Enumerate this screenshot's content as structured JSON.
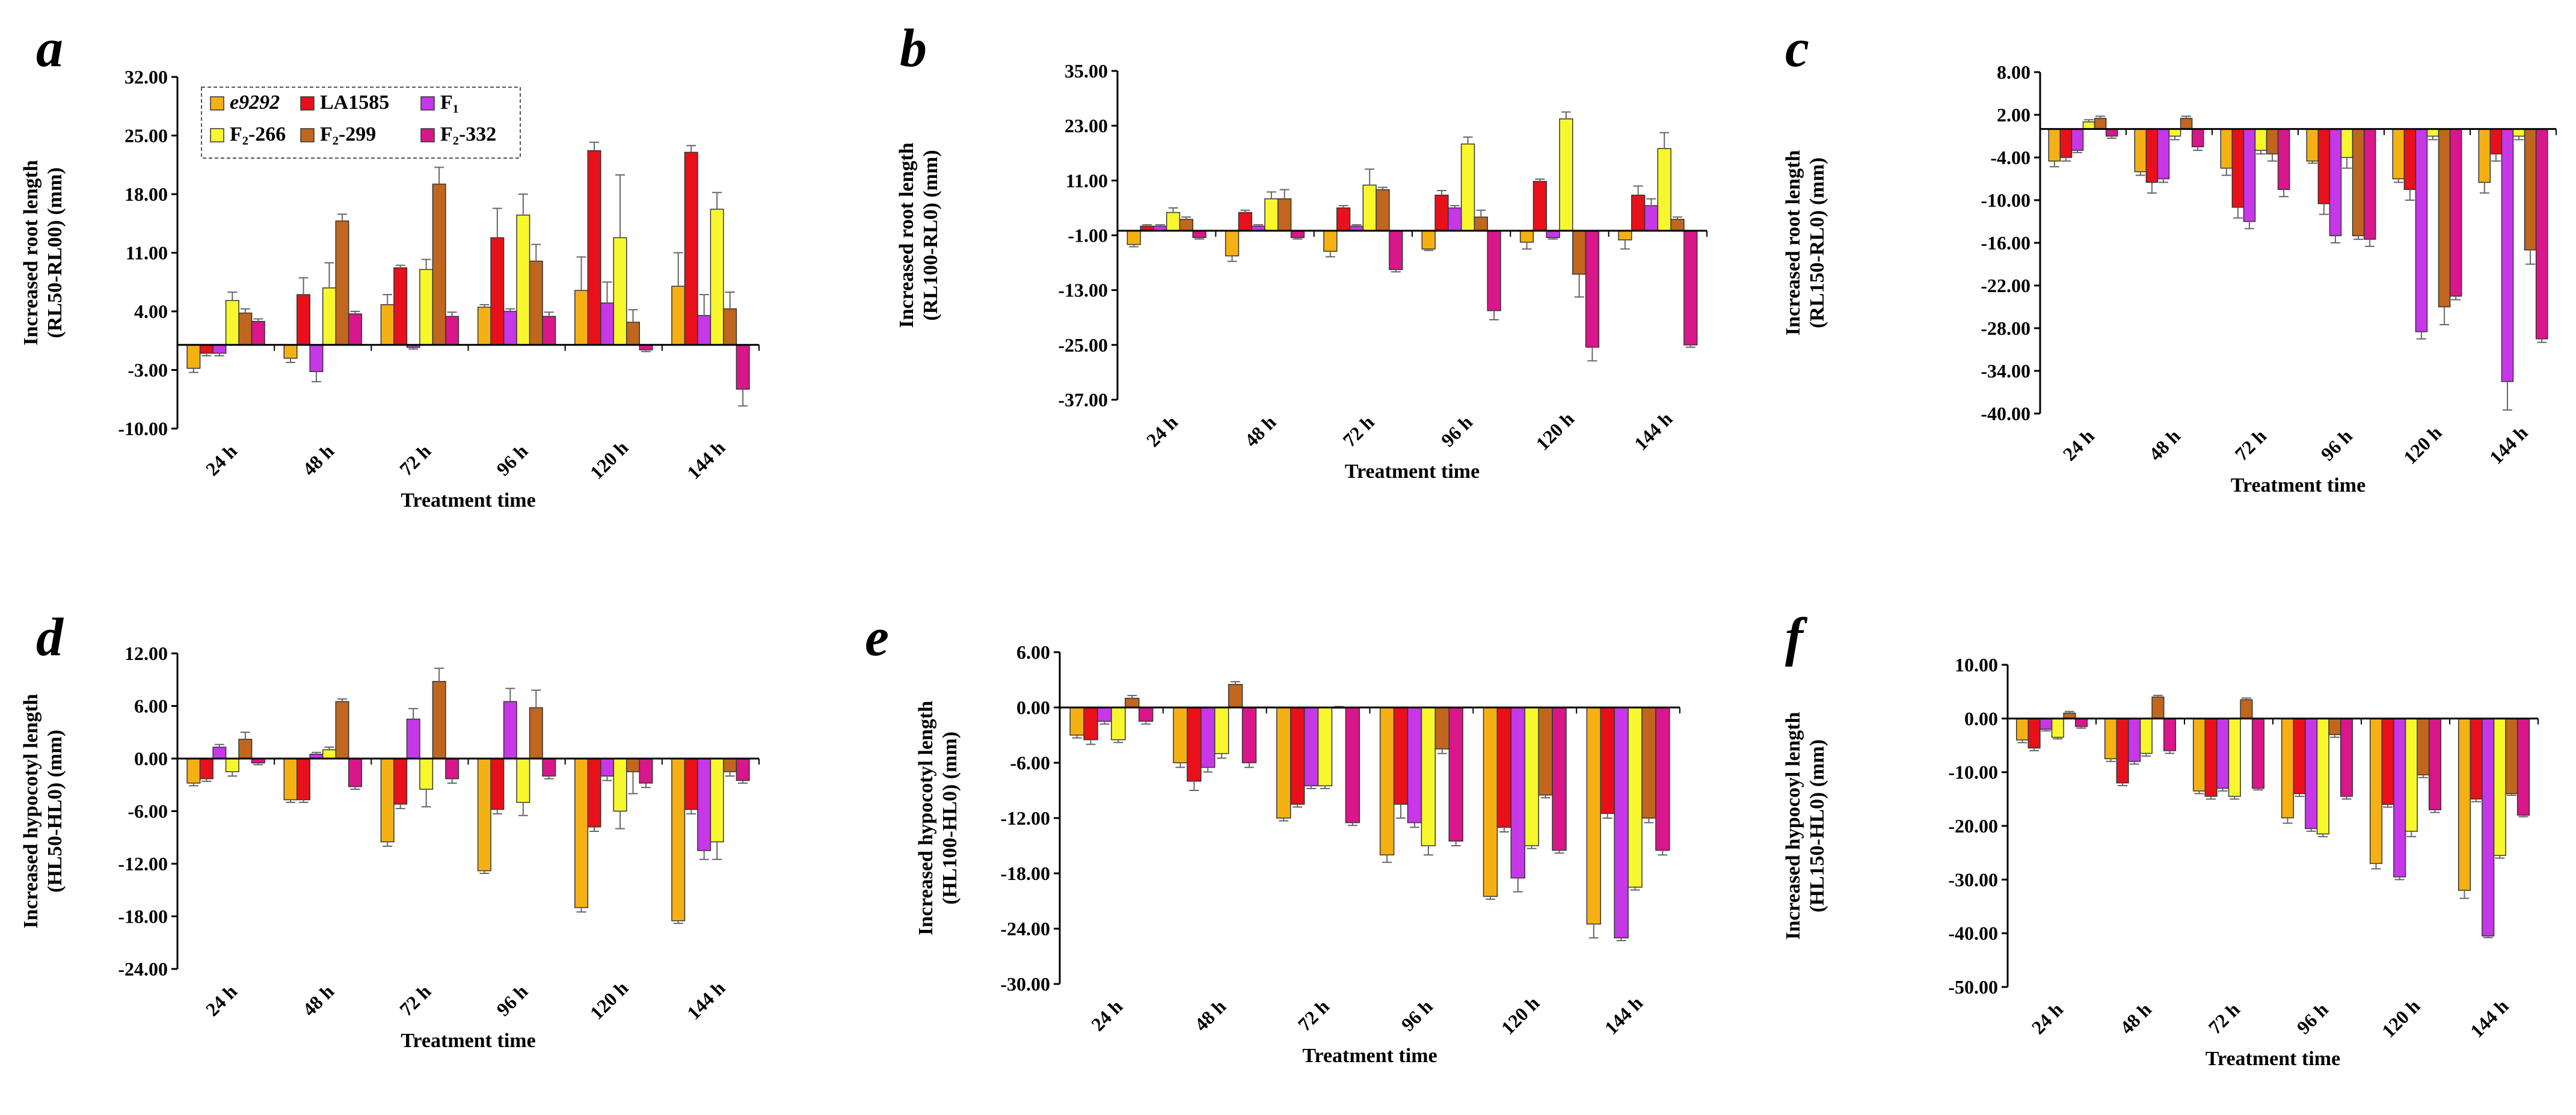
{
  "legend": [
    {
      "label": "e9292",
      "italic": true,
      "color": "#F5B014"
    },
    {
      "label": "LA1585",
      "italic": false,
      "color": "#E8101A"
    },
    {
      "label": "F₁",
      "italic": false,
      "color": "#C637E8"
    },
    {
      "label": "F₂-266",
      "italic": false,
      "color": "#F8F72E"
    },
    {
      "label": "F₂-299",
      "italic": false,
      "color": "#C0661E"
    },
    {
      "label": "F₂-332",
      "italic": false,
      "color": "#D9168A"
    }
  ],
  "chart_data": [
    {
      "panel": "a",
      "type": "bar",
      "title": "",
      "xlabel": "Treatment time",
      "ylabel_lines": [
        "Increased root length",
        "(RL50-RL00) (mm)"
      ],
      "ylim": [
        -10,
        32
      ],
      "yticks": [
        "32.00",
        "25.00",
        "18.00",
        "11.00",
        "4.00",
        "-3.00",
        "-10.00"
      ],
      "ytick_values": [
        32,
        25,
        18,
        11,
        4,
        -3,
        -10
      ],
      "categories": [
        "24 h",
        "48 h",
        "72 h",
        "96 h",
        "120 h",
        "144 h"
      ],
      "series": [
        {
          "name": "e9292",
          "values": [
            -2.8,
            -1.6,
            4.8,
            4.5,
            6.5,
            7.0
          ],
          "errors": [
            0.5,
            0.5,
            1.2,
            0.3,
            4.0,
            4.0
          ]
        },
        {
          "name": "LA1585",
          "values": [
            -1.0,
            6.0,
            9.2,
            12.8,
            23.2,
            23.0
          ],
          "errors": [
            0.3,
            2.0,
            0.3,
            3.5,
            1.0,
            0.8
          ]
        },
        {
          "name": "F₁",
          "values": [
            -1.0,
            -3.2,
            -0.3,
            4.0,
            5.0,
            3.5
          ],
          "errors": [
            0.3,
            1.2,
            0.2,
            0.3,
            2.5,
            2.5
          ]
        },
        {
          "name": "F₂-266",
          "values": [
            5.3,
            6.8,
            9.0,
            15.5,
            12.8,
            16.2
          ],
          "errors": [
            1.0,
            3.0,
            1.2,
            2.5,
            7.5,
            2.0
          ]
        },
        {
          "name": "F₂-299",
          "values": [
            3.8,
            14.8,
            19.2,
            10.0,
            2.7,
            4.3
          ],
          "errors": [
            0.5,
            0.8,
            2.0,
            2.0,
            1.5,
            2.0
          ]
        },
        {
          "name": "F₂-332",
          "values": [
            2.8,
            3.7,
            3.4,
            3.4,
            -0.6,
            -5.3
          ],
          "errors": [
            0.3,
            0.3,
            0.5,
            0.5,
            0.2,
            2.0
          ]
        }
      ]
    },
    {
      "panel": "b",
      "type": "bar",
      "title": "",
      "xlabel": "Treatment time",
      "ylabel_lines": [
        "Increased root length",
        "(RL100-RL0) (mm)"
      ],
      "ylim": [
        -37,
        35
      ],
      "yticks": [
        "35.00",
        "23.00",
        "11.00",
        "-1.00",
        "-13.00",
        "-25.00",
        "-37.00"
      ],
      "ytick_values": [
        35,
        23,
        11,
        -1,
        -13,
        -25,
        -37
      ],
      "categories": [
        "24 h",
        "48 h",
        "72 h",
        "96 h",
        "120 h",
        "144 h"
      ],
      "series": [
        {
          "name": "e9292",
          "values": [
            -3.0,
            -5.5,
            -4.5,
            -4.0,
            -2.5,
            -2.0
          ],
          "errors": [
            0.5,
            1.2,
            1.2,
            0.3,
            1.5,
            2.0
          ]
        },
        {
          "name": "LA1585",
          "values": [
            1.0,
            4.0,
            5.0,
            7.8,
            10.8,
            7.8
          ],
          "errors": [
            0.3,
            0.5,
            0.5,
            1.0,
            0.5,
            2.0
          ]
        },
        {
          "name": "F₁",
          "values": [
            1.0,
            1.0,
            1.0,
            5.0,
            -1.5,
            5.5
          ],
          "errors": [
            0.3,
            0.3,
            0.3,
            0.5,
            0.3,
            1.5
          ]
        },
        {
          "name": "F₂-266",
          "values": [
            4.0,
            7.0,
            10.0,
            19.0,
            24.5,
            18.0
          ],
          "errors": [
            1.0,
            1.5,
            3.5,
            1.5,
            1.5,
            3.5
          ]
        },
        {
          "name": "F₂-299",
          "values": [
            2.5,
            7.0,
            9.0,
            3.0,
            -9.5,
            2.5
          ],
          "errors": [
            0.5,
            2.0,
            0.5,
            1.5,
            5.0,
            0.5
          ]
        },
        {
          "name": "F₂-332",
          "values": [
            -1.5,
            -1.5,
            -8.5,
            -17.5,
            -25.5,
            -25.0
          ],
          "errors": [
            0.3,
            0.3,
            0.5,
            2.0,
            3.0,
            0.5
          ]
        }
      ]
    },
    {
      "panel": "c",
      "type": "bar",
      "title": "",
      "xlabel": "Treatment time",
      "ylabel_lines": [
        "Increased root length",
        "(RL150-RL0) (mm)"
      ],
      "ylim": [
        -40,
        8
      ],
      "yticks": [
        "8.00",
        "2.00",
        "-4.00",
        "-10.00",
        "-16.00",
        "-22.00",
        "-28.00",
        "-34.00",
        "-40.00"
      ],
      "ytick_values": [
        8,
        2,
        -4,
        -10,
        -16,
        -22,
        -28,
        -34,
        -40
      ],
      "categories": [
        "24 h",
        "48 h",
        "72 h",
        "96 h",
        "120 h",
        "144 h"
      ],
      "series": [
        {
          "name": "e9292",
          "values": [
            -4.5,
            -6.0,
            -5.5,
            -4.5,
            -7.0,
            -7.5
          ],
          "errors": [
            0.8,
            0.5,
            1.0,
            0.3,
            0.5,
            1.5
          ]
        },
        {
          "name": "LA1585",
          "values": [
            -4.0,
            -7.5,
            -11.0,
            -10.5,
            -8.5,
            -3.5
          ],
          "errors": [
            0.5,
            1.5,
            1.5,
            1.5,
            1.5,
            1.0
          ]
        },
        {
          "name": "F₁",
          "values": [
            -3.0,
            -7.0,
            -13.0,
            -15.0,
            -28.5,
            -35.5
          ],
          "errors": [
            0.3,
            0.5,
            1.0,
            1.0,
            1.0,
            4.0
          ]
        },
        {
          "name": "F₂-266",
          "values": [
            1.0,
            -1.0,
            -3.0,
            -4.0,
            -1.0,
            -1.0
          ],
          "errors": [
            0.3,
            0.5,
            0.5,
            1.5,
            0.5,
            0.5
          ]
        },
        {
          "name": "F₂-299",
          "values": [
            1.5,
            1.5,
            -3.5,
            -15.0,
            -25.0,
            -17.0
          ],
          "errors": [
            0.3,
            0.3,
            1.0,
            0.5,
            2.5,
            2.0
          ]
        },
        {
          "name": "F₂-332",
          "values": [
            -1.0,
            -2.5,
            -8.5,
            -15.5,
            -23.5,
            -29.5
          ],
          "errors": [
            0.3,
            0.5,
            1.0,
            1.0,
            0.5,
            0.5
          ]
        }
      ]
    },
    {
      "panel": "d",
      "type": "bar",
      "title": "",
      "xlabel": "Treatment time",
      "ylabel_lines": [
        "Increased hypocotyl length",
        "(HL50-HL0) (mm)"
      ],
      "ylim": [
        -24,
        12
      ],
      "yticks": [
        "12.00",
        "6.00",
        "0.00",
        "-6.00",
        "-12.00",
        "-18.00",
        "-24.00"
      ],
      "ytick_values": [
        12,
        6,
        0,
        -6,
        -12,
        -18,
        -24
      ],
      "categories": [
        "24 h",
        "48 h",
        "72 h",
        "96 h",
        "120 h",
        "144 h"
      ],
      "series": [
        {
          "name": "e9292",
          "values": [
            -2.8,
            -4.7,
            -9.5,
            -12.8,
            -17.0,
            -18.5
          ],
          "errors": [
            0.3,
            0.3,
            0.5,
            0.3,
            0.5,
            0.3
          ]
        },
        {
          "name": "LA1585",
          "values": [
            -2.3,
            -4.7,
            -5.2,
            -5.8,
            -7.8,
            -5.8
          ],
          "errors": [
            0.3,
            0.3,
            0.5,
            0.5,
            0.5,
            0.5
          ]
        },
        {
          "name": "F₁",
          "values": [
            1.3,
            0.5,
            4.5,
            6.5,
            -2.0,
            -10.5
          ],
          "errors": [
            0.3,
            0.2,
            1.2,
            1.5,
            0.5,
            1.0
          ]
        },
        {
          "name": "F₂-266",
          "values": [
            -1.5,
            1.0,
            -3.5,
            -5.0,
            -6.0,
            -9.5
          ],
          "errors": [
            0.5,
            0.3,
            2.0,
            1.5,
            2.0,
            2.0
          ]
        },
        {
          "name": "F₂-299",
          "values": [
            2.2,
            6.5,
            8.8,
            5.8,
            -1.5,
            -1.5
          ],
          "errors": [
            0.8,
            0.3,
            1.5,
            2.0,
            2.5,
            0.5
          ]
        },
        {
          "name": "F₂-332",
          "values": [
            -0.5,
            -3.2,
            -2.3,
            -2.0,
            -2.8,
            -2.5
          ],
          "errors": [
            0.2,
            0.3,
            0.5,
            0.3,
            0.5,
            0.3
          ]
        }
      ]
    },
    {
      "panel": "e",
      "type": "bar",
      "title": "",
      "xlabel": "Treatment time",
      "ylabel_lines": [
        "Increased hypocotyl length",
        "(HL100-HL0) (mm)"
      ],
      "ylim": [
        -30,
        6
      ],
      "yticks": [
        "6.00",
        "0.00",
        "-6.00",
        "-12.00",
        "-18.00",
        "-24.00",
        "-30.00"
      ],
      "ytick_values": [
        6,
        0,
        -6,
        -12,
        -18,
        -24,
        -30
      ],
      "categories": [
        "24 h",
        "48 h",
        "72 h",
        "96 h",
        "120 h",
        "144 h"
      ],
      "series": [
        {
          "name": "e9292",
          "values": [
            -3.0,
            -6.0,
            -12.0,
            -16.0,
            -20.5,
            -23.5
          ],
          "errors": [
            0.3,
            0.5,
            0.3,
            0.8,
            0.3,
            1.5
          ]
        },
        {
          "name": "LA1585",
          "values": [
            -3.5,
            -8.0,
            -10.5,
            -10.5,
            -13.0,
            -11.5
          ],
          "errors": [
            0.5,
            1.0,
            0.3,
            1.5,
            0.5,
            0.5
          ]
        },
        {
          "name": "F₁",
          "values": [
            -1.5,
            -6.5,
            -8.5,
            -12.5,
            -18.5,
            -25.0
          ],
          "errors": [
            0.3,
            0.5,
            0.3,
            0.5,
            1.5,
            0.3
          ]
        },
        {
          "name": "F₂-266",
          "values": [
            -3.5,
            -5.0,
            -8.5,
            -15.0,
            -15.0,
            -19.5
          ],
          "errors": [
            0.3,
            0.5,
            0.3,
            1.0,
            0.3,
            0.3
          ]
        },
        {
          "name": "F₂-299",
          "values": [
            1.0,
            2.5,
            0.0,
            -4.5,
            -9.5,
            -12.0
          ],
          "errors": [
            0.3,
            0.3,
            0.1,
            0.5,
            0.3,
            0.5
          ]
        },
        {
          "name": "F₂-332",
          "values": [
            -1.5,
            -6.0,
            -12.5,
            -14.5,
            -15.5,
            -15.5
          ],
          "errors": [
            0.3,
            0.5,
            0.3,
            0.5,
            0.3,
            0.5
          ]
        }
      ]
    },
    {
      "panel": "f",
      "type": "bar",
      "title": "",
      "xlabel": "Treatment time",
      "ylabel_lines": [
        "Increased hypocoyl length",
        "(HL150-HL0) (mm)"
      ],
      "ylim": [
        -50,
        10
      ],
      "yticks": [
        "10.00",
        "0.00",
        "-10.00",
        "-20.00",
        "-30.00",
        "-40.00",
        "-50.00"
      ],
      "ytick_values": [
        10,
        0,
        -10,
        -20,
        -30,
        -40,
        -50
      ],
      "categories": [
        "24 h",
        "48 h",
        "72 h",
        "96 h",
        "120 h",
        "144 h"
      ],
      "series": [
        {
          "name": "e9292",
          "values": [
            -4.0,
            -7.5,
            -13.5,
            -18.5,
            -27.0,
            -32.0
          ],
          "errors": [
            0.5,
            0.5,
            0.5,
            1.0,
            1.0,
            1.5
          ]
        },
        {
          "name": "LA1585",
          "values": [
            -5.5,
            -12.0,
            -14.5,
            -14.0,
            -16.0,
            -15.0
          ],
          "errors": [
            0.5,
            0.5,
            0.5,
            0.5,
            0.5,
            0.5
          ]
        },
        {
          "name": "F₁",
          "values": [
            -2.0,
            -8.0,
            -13.0,
            -20.5,
            -29.5,
            -40.5
          ],
          "errors": [
            0.3,
            0.5,
            0.5,
            0.5,
            0.5,
            0.3
          ]
        },
        {
          "name": "F₂-266",
          "values": [
            -3.5,
            -6.5,
            -14.5,
            -21.5,
            -21.0,
            -25.5
          ],
          "errors": [
            0.3,
            0.5,
            0.5,
            0.5,
            1.0,
            0.5
          ]
        },
        {
          "name": "F₂-299",
          "values": [
            1.0,
            4.0,
            3.5,
            -3.0,
            -10.5,
            -14.0
          ],
          "errors": [
            0.3,
            0.3,
            0.3,
            0.5,
            0.5,
            0.3
          ]
        },
        {
          "name": "F₂-332",
          "values": [
            -1.5,
            -6.0,
            -13.0,
            -14.5,
            -17.0,
            -18.0
          ],
          "errors": [
            0.3,
            0.5,
            0.3,
            0.5,
            0.5,
            0.3
          ]
        }
      ]
    }
  ]
}
